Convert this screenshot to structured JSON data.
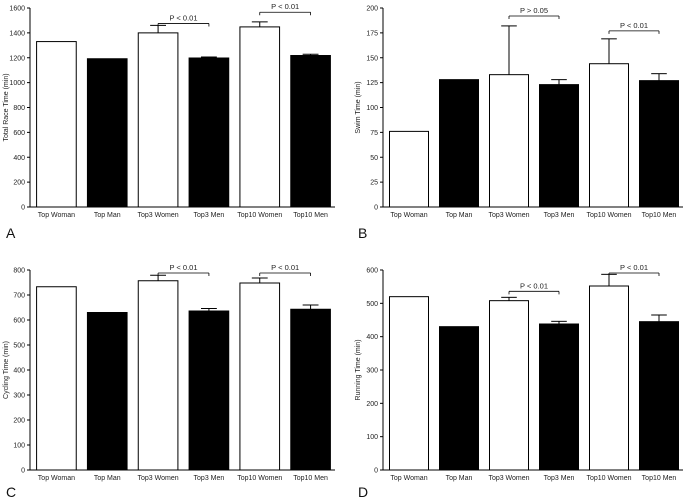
{
  "colors": {
    "women": "#ffffff",
    "men": "#000000",
    "stroke": "#000000"
  },
  "chart_data": [
    {
      "panel": "A",
      "type": "bar",
      "ylabel": "Total Race Time (min)",
      "ylim": [
        0,
        1600
      ],
      "yticks": [
        0,
        200,
        400,
        600,
        800,
        1000,
        1200,
        1400,
        1600
      ],
      "categories": [
        "Top Woman",
        "Top Man",
        "Top3 Women",
        "Top3 Men",
        "Top10 Women",
        "Top10 Men"
      ],
      "values": [
        1330,
        1192,
        1400,
        1198,
        1448,
        1218
      ],
      "errors": [
        0,
        0,
        60,
        8,
        40,
        10
      ],
      "groups": [
        "women",
        "men",
        "women",
        "men",
        "women",
        "men"
      ],
      "annotations": [
        {
          "text": "P < 0.01",
          "from": 2,
          "to": 3,
          "y": 1500
        },
        {
          "text": "P < 0.01",
          "from": 4,
          "to": 5,
          "y": 1590
        }
      ]
    },
    {
      "panel": "B",
      "type": "bar",
      "ylabel": "Swim Time (min)",
      "ylim": [
        0,
        200
      ],
      "yticks": [
        0,
        25,
        50,
        75,
        100,
        125,
        150,
        175,
        200
      ],
      "categories": [
        "Top Woman",
        "Top Man",
        "Top3 Women",
        "Top3 Men",
        "Top10 Women",
        "Top10 Men"
      ],
      "values": [
        76,
        128,
        133,
        123,
        144,
        127
      ],
      "errors": [
        0,
        0,
        49,
        5,
        25,
        7
      ],
      "groups": [
        "women",
        "men",
        "women",
        "men",
        "women",
        "men"
      ],
      "annotations": [
        {
          "text": "P > 0.05",
          "from": 2,
          "to": 3,
          "y": 195
        },
        {
          "text": "P < 0.01",
          "from": 4,
          "to": 5,
          "y": 180
        }
      ]
    },
    {
      "panel": "C",
      "type": "bar",
      "ylabel": "Cycling Time (min)",
      "ylim": [
        0,
        800
      ],
      "yticks": [
        0,
        100,
        200,
        300,
        400,
        500,
        600,
        700,
        800
      ],
      "categories": [
        "Top Woman",
        "Top Man",
        "Top3 Women",
        "Top3 Men",
        "Top10 Women",
        "Top10 Men"
      ],
      "values": [
        733,
        630,
        757,
        636,
        748,
        643
      ],
      "errors": [
        0,
        0,
        22,
        10,
        20,
        17
      ],
      "groups": [
        "women",
        "men",
        "women",
        "men",
        "women",
        "men"
      ],
      "annotations": [
        {
          "text": "P < 0.01",
          "from": 2,
          "to": 3,
          "y": 800
        },
        {
          "text": "P < 0.01",
          "from": 4,
          "to": 5,
          "y": 800
        }
      ]
    },
    {
      "panel": "D",
      "type": "bar",
      "ylabel": "Running Time (min)",
      "ylim": [
        0,
        600
      ],
      "yticks": [
        0,
        100,
        200,
        300,
        400,
        500,
        600
      ],
      "categories": [
        "Top Woman",
        "Top Man",
        "Top3 Women",
        "Top3 Men",
        "Top10 Women",
        "Top10 Men"
      ],
      "values": [
        520,
        430,
        508,
        438,
        552,
        445
      ],
      "errors": [
        0,
        0,
        10,
        8,
        35,
        20
      ],
      "groups": [
        "women",
        "men",
        "women",
        "men",
        "women",
        "men"
      ],
      "annotations": [
        {
          "text": "P < 0.01",
          "from": 2,
          "to": 3,
          "y": 545
        },
        {
          "text": "P < 0.01",
          "from": 4,
          "to": 5,
          "y": 600
        }
      ]
    }
  ]
}
